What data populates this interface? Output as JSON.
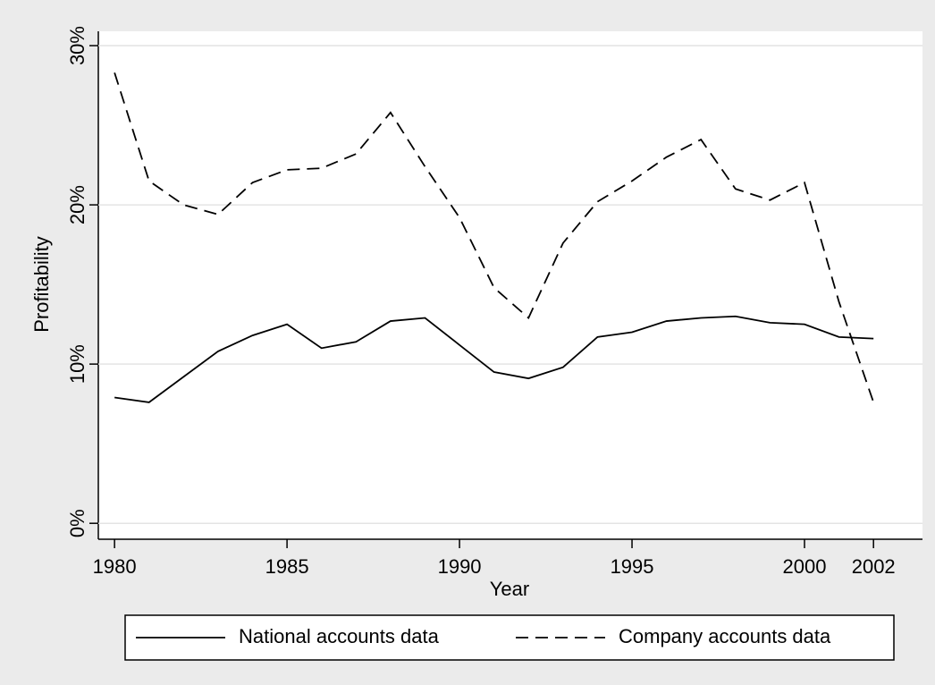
{
  "chart_data": {
    "type": "line",
    "x_label": "Year",
    "y_label": "Profitability",
    "x": [
      1980,
      1981,
      1982,
      1983,
      1984,
      1985,
      1986,
      1987,
      1988,
      1989,
      1990,
      1991,
      1992,
      1993,
      1994,
      1995,
      1996,
      1997,
      1998,
      1999,
      2000,
      2001,
      2002
    ],
    "series": [
      {
        "name": "National accounts data",
        "color": "#000000",
        "dash": "solid",
        "values": [
          7.9,
          7.6,
          9.2,
          10.8,
          11.8,
          12.5,
          11.0,
          11.4,
          12.7,
          12.9,
          11.2,
          9.5,
          9.1,
          9.8,
          11.7,
          12.0,
          12.7,
          12.9,
          13.0,
          12.6,
          12.5,
          11.7,
          11.6
        ]
      },
      {
        "name": "Company accounts data",
        "color": "#000000",
        "dash": "dashed",
        "values": [
          28.3,
          21.5,
          20.0,
          19.4,
          21.4,
          22.2,
          22.3,
          23.2,
          25.8,
          22.4,
          19.2,
          14.8,
          12.9,
          17.6,
          20.2,
          21.5,
          23.0,
          24.1,
          21.0,
          20.3,
          21.4,
          13.9,
          7.6
        ]
      }
    ],
    "xlim": [
      1979.53,
      2003.42
    ],
    "xticks": [
      1980,
      1985,
      1990,
      1995,
      2000,
      2002
    ],
    "ylim": [
      -1,
      30.9
    ],
    "yticks": [
      {
        "value": 0,
        "label": "0%"
      },
      {
        "value": 10,
        "label": "10%"
      },
      {
        "value": 20,
        "label": "20%"
      },
      {
        "value": 30,
        "label": "30%"
      }
    ],
    "grid": true,
    "legend": "bottom"
  }
}
